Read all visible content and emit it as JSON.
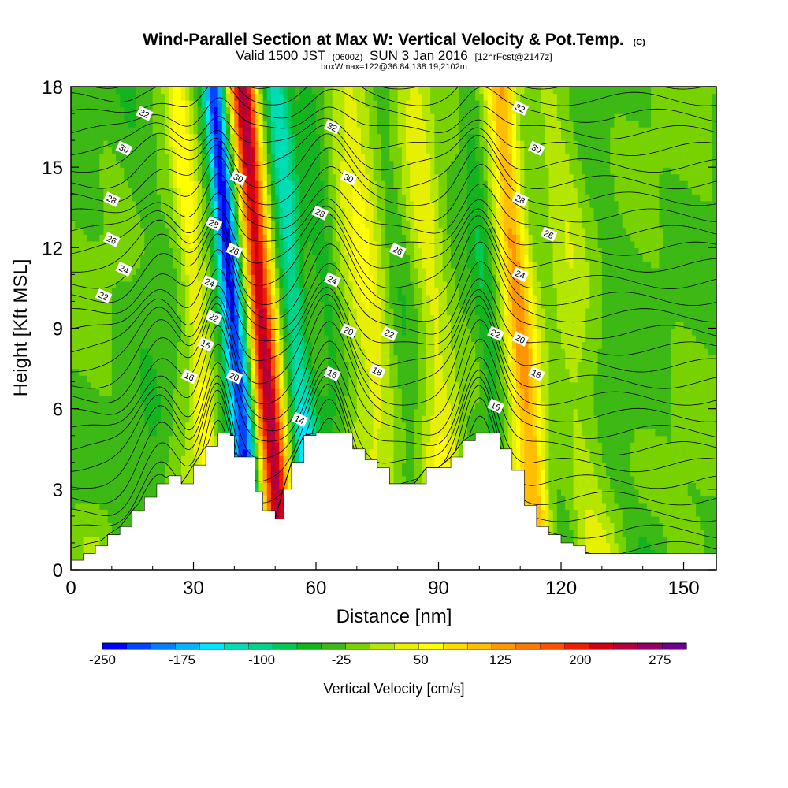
{
  "figure": {
    "title": "Wind-Parallel Section at Max W: Vertical Velocity & Pot.Temp.",
    "copyright": "(C)",
    "subtitle_main_a": "Valid 1500 JST",
    "subtitle_small_a": "(0600Z)",
    "subtitle_main_b": "SUN 3 Jan 2016",
    "subtitle_small_b": "[12hrFcst@2147z]",
    "subtitle_2": "boxWmax=122@36.84,138.19,2102m"
  },
  "chart_data": {
    "type": "heatmap",
    "xlabel": "Distance [nm]",
    "ylabel": "Height [Kft MSL]",
    "xlim": [
      0,
      158
    ],
    "ylim": [
      0,
      18
    ],
    "x_ticks": [
      0,
      30,
      60,
      90,
      120,
      150
    ],
    "y_ticks": [
      0,
      3,
      6,
      9,
      12,
      15,
      18
    ],
    "colorbar": {
      "label": "Vertical Velocity [cm/s]",
      "range": [
        -250,
        300
      ],
      "step": 25,
      "tick_values": [
        -250,
        -175,
        -100,
        -25,
        50,
        125,
        200,
        275
      ],
      "tick_labels": [
        "-250",
        "-175",
        "-100",
        "-25",
        "50",
        "125",
        "200",
        "275"
      ],
      "colors": [
        "#0000ff",
        "#0045ff",
        "#0080ff",
        "#00b4ff",
        "#00e6ff",
        "#00dcb4",
        "#00d28c",
        "#00c850",
        "#14b41e",
        "#3cb914",
        "#78d200",
        "#b4e600",
        "#e6f000",
        "#ffff00",
        "#ffdc00",
        "#ffbe00",
        "#ff9600",
        "#ff7800",
        "#ff5000",
        "#f01e00",
        "#d20014",
        "#b4003c",
        "#960064",
        "#6e008c"
      ]
    },
    "terrain_top_kft": [
      [
        0,
        0.35
      ],
      [
        3,
        0.6
      ],
      [
        6,
        0.9
      ],
      [
        9,
        1.3
      ],
      [
        12,
        1.6
      ],
      [
        15,
        2.2
      ],
      [
        18,
        2.7
      ],
      [
        21,
        3.2
      ],
      [
        24,
        3.5
      ],
      [
        27,
        3.2
      ],
      [
        30,
        3.9
      ],
      [
        33,
        4.6
      ],
      [
        36,
        5.1
      ],
      [
        39,
        5.0
      ],
      [
        40,
        4.2
      ],
      [
        42,
        4.2
      ],
      [
        45,
        2.9
      ],
      [
        47,
        2.2
      ],
      [
        50,
        1.9
      ],
      [
        52,
        3.0
      ],
      [
        54,
        4.0
      ],
      [
        57,
        5.0
      ],
      [
        60,
        5.1
      ],
      [
        63,
        5.1
      ],
      [
        66,
        5.1
      ],
      [
        69,
        4.5
      ],
      [
        72,
        4.1
      ],
      [
        75,
        3.8
      ],
      [
        78,
        3.2
      ],
      [
        81,
        3.2
      ],
      [
        84,
        3.2
      ],
      [
        87,
        3.8
      ],
      [
        90,
        3.8
      ],
      [
        93,
        4.2
      ],
      [
        96,
        4.8
      ],
      [
        99,
        5.1
      ],
      [
        102,
        5.1
      ],
      [
        105,
        4.5
      ],
      [
        108,
        3.7
      ],
      [
        111,
        2.4
      ],
      [
        114,
        1.6
      ],
      [
        117,
        1.3
      ],
      [
        120,
        1.0
      ],
      [
        123,
        0.9
      ],
      [
        126,
        0.6
      ],
      [
        158,
        0.6
      ]
    ],
    "updraft_cores": [
      {
        "x": 42,
        "w": 275
      },
      {
        "x": 105,
        "w": 150
      },
      {
        "x": 68,
        "w": 75
      },
      {
        "x": 26,
        "w": 75
      }
    ],
    "downdraft_cores": [
      {
        "x": 35,
        "w": -225
      },
      {
        "x": 50,
        "w": -100
      },
      {
        "x": 97,
        "w": -25
      },
      {
        "x": 58,
        "w": -25
      }
    ],
    "isentrope_label_values": [
      "32",
      "30",
      "28",
      "26",
      "24",
      "22",
      "18",
      "16",
      "20",
      "14"
    ],
    "isentrope_labels": [
      {
        "x": 18,
        "y": 17.0,
        "t": "32"
      },
      {
        "x": 13,
        "y": 15.7,
        "t": "30"
      },
      {
        "x": 10,
        "y": 13.8,
        "t": "28"
      },
      {
        "x": 10,
        "y": 12.3,
        "t": "26"
      },
      {
        "x": 13,
        "y": 11.2,
        "t": "24"
      },
      {
        "x": 8,
        "y": 10.2,
        "t": "22"
      },
      {
        "x": 35,
        "y": 12.9,
        "t": "28"
      },
      {
        "x": 34,
        "y": 10.7,
        "t": "24"
      },
      {
        "x": 35,
        "y": 9.4,
        "t": "22"
      },
      {
        "x": 33,
        "y": 8.4,
        "t": "16"
      },
      {
        "x": 29,
        "y": 7.2,
        "t": "16"
      },
      {
        "x": 41,
        "y": 14.6,
        "t": "30"
      },
      {
        "x": 40,
        "y": 11.9,
        "t": "26"
      },
      {
        "x": 40,
        "y": 7.2,
        "t": "20"
      },
      {
        "x": 64,
        "y": 16.5,
        "t": "32"
      },
      {
        "x": 68,
        "y": 14.6,
        "t": "30"
      },
      {
        "x": 61,
        "y": 13.3,
        "t": "28"
      },
      {
        "x": 80,
        "y": 11.9,
        "t": "26"
      },
      {
        "x": 64,
        "y": 10.8,
        "t": "24"
      },
      {
        "x": 68,
        "y": 8.9,
        "t": "20"
      },
      {
        "x": 78,
        "y": 8.8,
        "t": "22"
      },
      {
        "x": 64,
        "y": 7.3,
        "t": "16"
      },
      {
        "x": 75,
        "y": 7.4,
        "t": "18"
      },
      {
        "x": 56,
        "y": 5.6,
        "t": "14"
      },
      {
        "x": 110,
        "y": 17.2,
        "t": "32"
      },
      {
        "x": 114,
        "y": 15.7,
        "t": "30"
      },
      {
        "x": 110,
        "y": 13.8,
        "t": "28"
      },
      {
        "x": 117,
        "y": 12.5,
        "t": "26"
      },
      {
        "x": 110,
        "y": 11.0,
        "t": "24"
      },
      {
        "x": 104,
        "y": 8.8,
        "t": "22"
      },
      {
        "x": 110,
        "y": 8.6,
        "t": "20"
      },
      {
        "x": 114,
        "y": 7.3,
        "t": "18"
      },
      {
        "x": 104,
        "y": 6.1,
        "t": "16"
      }
    ]
  }
}
